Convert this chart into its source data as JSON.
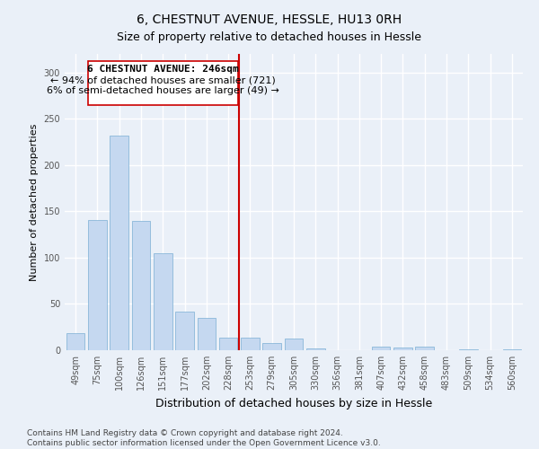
{
  "title": "6, CHESTNUT AVENUE, HESSLE, HU13 0RH",
  "subtitle": "Size of property relative to detached houses in Hessle",
  "xlabel": "Distribution of detached houses by size in Hessle",
  "ylabel": "Number of detached properties",
  "bar_color": "#c5d8f0",
  "bar_edge_color": "#7bafd4",
  "categories": [
    "49sqm",
    "75sqm",
    "100sqm",
    "126sqm",
    "151sqm",
    "177sqm",
    "202sqm",
    "228sqm",
    "253sqm",
    "279sqm",
    "305sqm",
    "330sqm",
    "356sqm",
    "381sqm",
    "407sqm",
    "432sqm",
    "458sqm",
    "483sqm",
    "509sqm",
    "534sqm",
    "560sqm"
  ],
  "values": [
    18,
    141,
    232,
    140,
    105,
    42,
    35,
    14,
    14,
    8,
    13,
    2,
    0,
    0,
    4,
    3,
    4,
    0,
    1,
    0,
    1
  ],
  "vline_label": "6 CHESTNUT AVENUE: 246sqm",
  "annotation_line1": "← 94% of detached houses are smaller (721)",
  "annotation_line2": "6% of semi-detached houses are larger (49) →",
  "ylim": [
    0,
    320
  ],
  "yticks": [
    0,
    50,
    100,
    150,
    200,
    250,
    300
  ],
  "footnote1": "Contains HM Land Registry data © Crown copyright and database right 2024.",
  "footnote2": "Contains public sector information licensed under the Open Government Licence v3.0.",
  "bg_color": "#eaf0f8",
  "plot_bg_color": "#eaf0f8",
  "grid_color": "#ffffff",
  "vline_color": "#cc0000",
  "box_color": "#cc0000",
  "title_fontsize": 10,
  "subtitle_fontsize": 9,
  "xlabel_fontsize": 9,
  "ylabel_fontsize": 8,
  "tick_fontsize": 7,
  "annotation_fontsize": 8
}
